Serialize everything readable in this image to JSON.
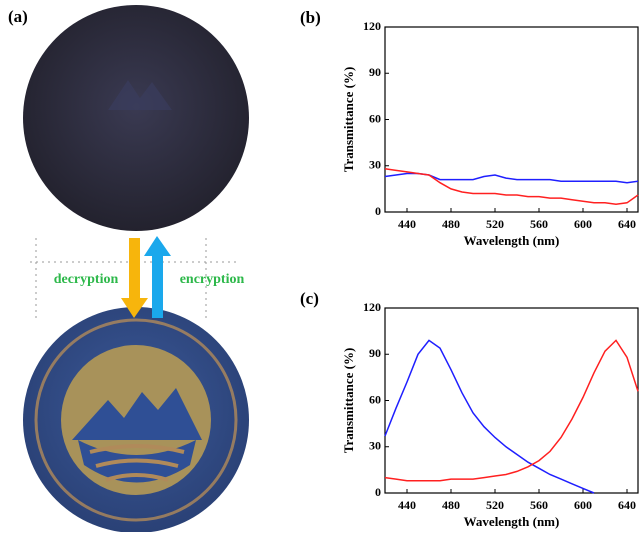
{
  "panel_a": {
    "label": "(a)",
    "left_text": "decryption",
    "right_text": "encryption"
  },
  "chart_data": [
    {
      "type": "line",
      "panel_label": "(b)",
      "x_label": "Wavelength (nm)",
      "y_label": "Transmittance (%)",
      "x": [
        420,
        430,
        440,
        450,
        460,
        470,
        480,
        490,
        500,
        510,
        520,
        530,
        540,
        550,
        560,
        570,
        580,
        590,
        600,
        610,
        620,
        630,
        640,
        650
      ],
      "series": [
        {
          "color": "#1f1fff",
          "values": [
            23,
            24,
            25,
            25,
            24,
            21,
            21,
            21,
            21,
            23,
            24,
            22,
            21,
            21,
            21,
            21,
            20,
            20,
            20,
            20,
            20,
            20,
            19,
            20
          ]
        },
        {
          "color": "#ff2020",
          "values": [
            28,
            27,
            26,
            25,
            24,
            19,
            15,
            13,
            12,
            12,
            12,
            11,
            11,
            10,
            10,
            9,
            9,
            8,
            7,
            6,
            6,
            5,
            6,
            11
          ]
        }
      ],
      "xlim": [
        420,
        650
      ],
      "xticks": [
        440,
        480,
        520,
        560,
        600,
        640
      ],
      "ylim": [
        0,
        120
      ],
      "yticks": [
        0,
        30,
        60,
        90,
        120
      ]
    },
    {
      "type": "line",
      "panel_label": "(c)",
      "x_label": "Wavelength (nm)",
      "y_label": "Transmittance (%)",
      "x": [
        420,
        430,
        440,
        450,
        460,
        470,
        480,
        490,
        500,
        510,
        520,
        530,
        540,
        550,
        560,
        570,
        580,
        590,
        600,
        610,
        620,
        630,
        640,
        650
      ],
      "series": [
        {
          "color": "#1f1fff",
          "values": [
            37,
            55,
            72,
            90,
            99,
            94,
            80,
            65,
            52,
            43,
            36,
            30,
            25,
            20,
            16,
            12,
            9,
            6,
            3,
            0,
            null,
            null,
            null,
            null
          ]
        },
        {
          "color": "#ff2020",
          "values": [
            10,
            9,
            8,
            8,
            8,
            8,
            9,
            9,
            9,
            10,
            11,
            12,
            14,
            17,
            21,
            27,
            36,
            48,
            62,
            78,
            92,
            99,
            88,
            66
          ]
        }
      ],
      "xlim": [
        420,
        650
      ],
      "xticks": [
        440,
        480,
        520,
        560,
        600,
        640
      ],
      "ylim": [
        0,
        120
      ],
      "yticks": [
        0,
        30,
        60,
        90,
        120
      ]
    }
  ]
}
